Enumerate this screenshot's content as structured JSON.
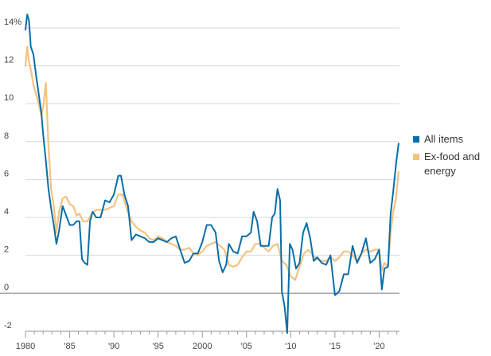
{
  "chart_data": {
    "type": "line",
    "title": "",
    "xlabel": "",
    "ylabel": "",
    "xlim": [
      1980,
      2022.3
    ],
    "ylim": [
      -2,
      15
    ],
    "grid": true,
    "legend_position": "right",
    "y_ticks": [
      {
        "value": 14,
        "label": "14%"
      },
      {
        "value": 12,
        "label": "12"
      },
      {
        "value": 10,
        "label": "10"
      },
      {
        "value": 8,
        "label": "8"
      },
      {
        "value": 6,
        "label": "6"
      },
      {
        "value": 4,
        "label": "4"
      },
      {
        "value": 2,
        "label": "2"
      },
      {
        "value": 0,
        "label": "0"
      },
      {
        "value": -2,
        "label": "-2"
      }
    ],
    "x_ticks": [
      {
        "value": 1980,
        "label": "1980"
      },
      {
        "value": 1985,
        "label": "'85"
      },
      {
        "value": 1990,
        "label": "'90"
      },
      {
        "value": 1995,
        "label": "'95"
      },
      {
        "value": 2000,
        "label": "2000"
      },
      {
        "value": 2005,
        "label": "'05"
      },
      {
        "value": 2010,
        "label": "'10"
      },
      {
        "value": 2015,
        "label": "'15"
      },
      {
        "value": 2020,
        "label": "'20"
      }
    ],
    "series": [
      {
        "name": "All items",
        "color": "#0a6ea8",
        "x": [
          1980.0,
          1980.2,
          1980.4,
          1980.6,
          1980.9,
          1981.2,
          1981.5,
          1981.8,
          1982.0,
          1982.3,
          1982.6,
          1982.9,
          1983.2,
          1983.5,
          1983.8,
          1984.2,
          1984.6,
          1985.0,
          1985.4,
          1985.8,
          1986.1,
          1986.4,
          1986.7,
          1987.0,
          1987.3,
          1987.6,
          1988.0,
          1988.5,
          1989.0,
          1989.5,
          1990.0,
          1990.5,
          1990.8,
          1991.2,
          1991.6,
          1992.0,
          1992.5,
          1993.0,
          1993.5,
          1994.0,
          1994.5,
          1995.0,
          1995.5,
          1996.0,
          1996.5,
          1997.0,
          1997.5,
          1998.0,
          1998.5,
          1999.0,
          1999.5,
          2000.0,
          2000.5,
          2001.0,
          2001.5,
          2001.9,
          2002.3,
          2002.7,
          2003.0,
          2003.5,
          2004.0,
          2004.5,
          2005.0,
          2005.5,
          2005.8,
          2006.2,
          2006.6,
          2007.0,
          2007.5,
          2007.9,
          2008.2,
          2008.5,
          2008.8,
          2009.0,
          2009.3,
          2009.6,
          2009.9,
          2010.2,
          2010.6,
          2011.0,
          2011.4,
          2011.8,
          2012.2,
          2012.6,
          2013.0,
          2013.5,
          2014.0,
          2014.5,
          2015.0,
          2015.5,
          2016.0,
          2016.5,
          2017.0,
          2017.5,
          2018.0,
          2018.5,
          2019.0,
          2019.5,
          2020.0,
          2020.3,
          2020.6,
          2021.0,
          2021.3,
          2021.6,
          2021.9,
          2022.2
        ],
        "values": [
          13.9,
          14.7,
          14.4,
          13.0,
          12.6,
          11.5,
          10.5,
          9.5,
          8.4,
          7.0,
          5.5,
          4.5,
          3.6,
          2.6,
          3.3,
          4.6,
          4.1,
          3.6,
          3.6,
          3.8,
          3.8,
          1.8,
          1.6,
          1.5,
          3.8,
          4.3,
          4.0,
          4.0,
          4.9,
          4.8,
          5.2,
          6.2,
          6.2,
          5.2,
          4.6,
          2.8,
          3.1,
          3.0,
          2.9,
          2.7,
          2.7,
          2.9,
          2.8,
          2.7,
          2.9,
          3.0,
          2.3,
          1.6,
          1.7,
          2.1,
          2.1,
          2.7,
          3.6,
          3.6,
          3.2,
          1.7,
          1.1,
          1.5,
          2.6,
          2.2,
          2.1,
          3.0,
          3.0,
          3.2,
          4.3,
          3.8,
          2.5,
          2.5,
          2.5,
          4.0,
          4.2,
          5.5,
          4.9,
          0.1,
          -0.7,
          -2.1,
          2.6,
          2.3,
          1.3,
          1.6,
          3.2,
          3.7,
          2.9,
          1.7,
          1.9,
          1.6,
          1.5,
          2.0,
          -0.1,
          0.1,
          1.0,
          1.0,
          2.5,
          1.6,
          2.1,
          2.9,
          1.6,
          1.8,
          2.3,
          0.2,
          1.3,
          1.4,
          4.2,
          5.4,
          6.8,
          7.9
        ]
      },
      {
        "name": "Ex-food and energy",
        "color": "#f6c27e",
        "x": [
          1980.0,
          1980.2,
          1980.4,
          1980.6,
          1980.9,
          1981.2,
          1981.5,
          1981.8,
          1982.0,
          1982.3,
          1982.6,
          1982.9,
          1983.2,
          1983.5,
          1983.8,
          1984.2,
          1984.6,
          1985.0,
          1985.4,
          1985.8,
          1986.1,
          1986.5,
          1987.0,
          1987.5,
          1988.0,
          1988.5,
          1989.0,
          1989.5,
          1990.0,
          1990.5,
          1991.0,
          1991.5,
          1992.0,
          1992.5,
          1993.0,
          1993.5,
          1994.0,
          1994.5,
          1995.0,
          1995.5,
          1996.0,
          1996.5,
          1997.0,
          1997.5,
          1998.0,
          1998.5,
          1999.0,
          1999.5,
          2000.0,
          2000.5,
          2001.0,
          2001.5,
          2002.0,
          2002.5,
          2003.0,
          2003.5,
          2004.0,
          2004.5,
          2005.0,
          2005.5,
          2006.0,
          2006.5,
          2007.0,
          2007.5,
          2008.0,
          2008.5,
          2009.0,
          2009.5,
          2010.0,
          2010.5,
          2011.0,
          2011.5,
          2012.0,
          2012.5,
          2013.0,
          2013.5,
          2014.0,
          2014.5,
          2015.0,
          2015.5,
          2016.0,
          2016.5,
          2017.0,
          2017.5,
          2018.0,
          2018.5,
          2019.0,
          2019.5,
          2020.0,
          2020.3,
          2020.6,
          2021.0,
          2021.3,
          2021.6,
          2021.9,
          2022.2
        ],
        "values": [
          12.0,
          13.0,
          12.2,
          11.8,
          11.0,
          10.5,
          10.0,
          9.4,
          9.8,
          11.1,
          7.8,
          5.5,
          4.6,
          3.2,
          4.3,
          5.0,
          5.1,
          4.7,
          4.6,
          4.1,
          4.2,
          3.8,
          3.8,
          4.2,
          4.4,
          4.4,
          4.4,
          4.5,
          4.6,
          5.2,
          5.2,
          4.4,
          3.8,
          3.5,
          3.3,
          3.2,
          2.9,
          2.8,
          3.0,
          2.9,
          2.7,
          2.6,
          2.5,
          2.3,
          2.3,
          2.4,
          2.1,
          2.0,
          2.2,
          2.5,
          2.6,
          2.7,
          2.5,
          2.3,
          1.5,
          1.4,
          1.5,
          1.9,
          2.2,
          2.2,
          2.6,
          2.6,
          2.4,
          2.2,
          2.5,
          2.6,
          1.7,
          1.5,
          0.9,
          0.7,
          1.4,
          2.1,
          2.3,
          2.0,
          1.8,
          1.7,
          1.7,
          1.9,
          1.7,
          1.9,
          2.2,
          2.2,
          2.0,
          1.7,
          2.1,
          2.3,
          2.2,
          2.3,
          2.3,
          1.2,
          1.6,
          1.4,
          3.2,
          4.3,
          5.0,
          6.4
        ]
      }
    ]
  }
}
